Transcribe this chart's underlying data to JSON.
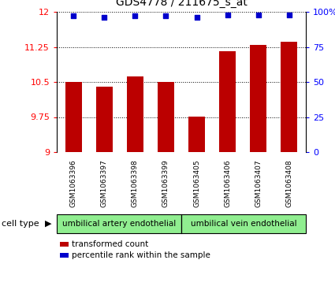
{
  "title": "GDS4778 / 211675_s_at",
  "samples": [
    "GSM1063396",
    "GSM1063397",
    "GSM1063398",
    "GSM1063399",
    "GSM1063405",
    "GSM1063406",
    "GSM1063407",
    "GSM1063408"
  ],
  "bar_values": [
    10.5,
    10.4,
    10.62,
    10.5,
    9.76,
    11.15,
    11.3,
    11.36
  ],
  "percentile_values": [
    97,
    96,
    97,
    97,
    96,
    98,
    98,
    98
  ],
  "ylim_left": [
    9,
    12
  ],
  "ylim_right": [
    0,
    100
  ],
  "yticks_left": [
    9,
    9.75,
    10.5,
    11.25,
    12
  ],
  "ytick_labels_left": [
    "9",
    "9.75",
    "10.5",
    "11.25",
    "12"
  ],
  "yticks_right": [
    0,
    25,
    50,
    75,
    100
  ],
  "ytick_labels_right": [
    "0",
    "25",
    "50",
    "75",
    "100%"
  ],
  "bar_color": "#bb0000",
  "dot_color": "#0000cc",
  "bar_width": 0.55,
  "cell_type_labels": [
    "umbilical artery endothelial",
    "umbilical vein endothelial"
  ],
  "cell_type_color": "#90EE90",
  "xlabel_bg_color": "#c8c8c8",
  "legend_items": [
    "transformed count",
    "percentile rank within the sample"
  ],
  "legend_colors": [
    "#bb0000",
    "#0000cc"
  ]
}
